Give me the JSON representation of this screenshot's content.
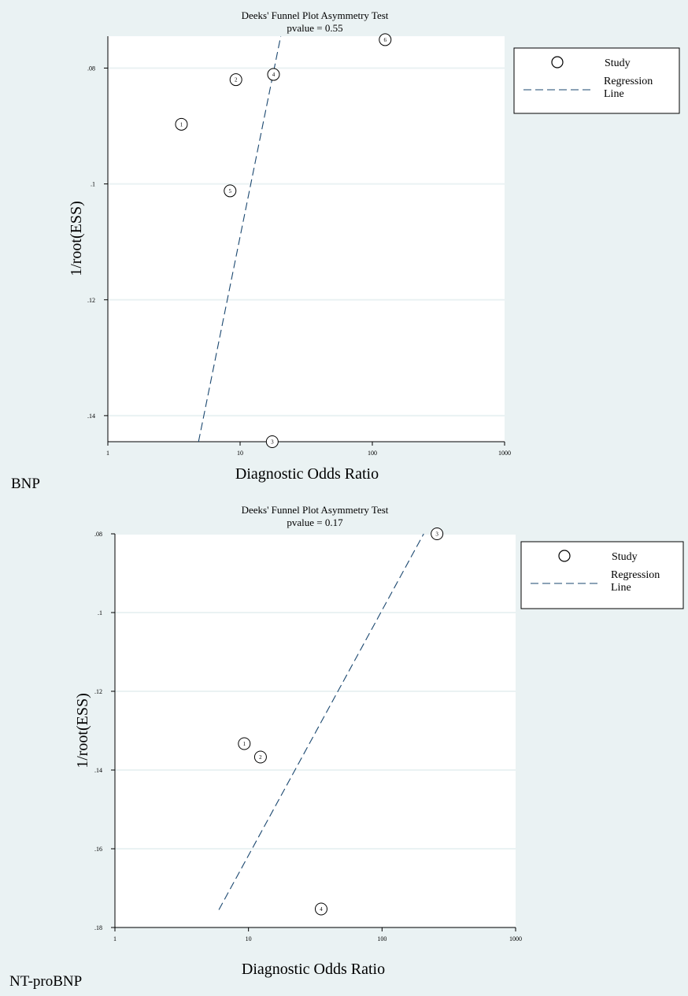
{
  "chart_data": [
    {
      "type": "scatter",
      "panel_label": "BNP",
      "title": "Deeks' Funnel Plot Asymmetry Test",
      "subtitle": "pvalue  =   0.55",
      "xlabel": "Diagnostic Odds Ratio",
      "ylabel": "1/root(ESS)",
      "x_scale": "log",
      "xlim": [
        1,
        1000
      ],
      "x_ticks": [
        "1",
        "10",
        "100",
        "1000"
      ],
      "ylim": [
        0.0745,
        0.1445
      ],
      "y_reversed": true,
      "y_ticks": [
        0.08,
        0.1,
        0.12,
        0.14
      ],
      "y_tick_labels": [
        ".08",
        ".1",
        ".12",
        ".14"
      ],
      "grid": true,
      "legend": {
        "position": "right",
        "entries": [
          "Study",
          "Regression Line"
        ]
      },
      "series": [
        {
          "name": "Study",
          "points": [
            {
              "label": "1",
              "x": 3.6,
              "y": 0.0897
            },
            {
              "label": "2",
              "x": 9.3,
              "y": 0.082
            },
            {
              "label": "3",
              "x": 17.5,
              "y": 0.1445
            },
            {
              "label": "4",
              "x": 17.9,
              "y": 0.0811
            },
            {
              "label": "5",
              "x": 8.4,
              "y": 0.1012
            },
            {
              "label": "6",
              "x": 125,
              "y": 0.0751
            }
          ]
        },
        {
          "name": "Regression Line",
          "line": [
            {
              "x": 4.85,
              "y": 0.1445
            },
            {
              "x": 20.3,
              "y": 0.0745
            }
          ]
        }
      ]
    },
    {
      "type": "scatter",
      "panel_label": "NT-proBNP",
      "title": "Deeks' Funnel Plot Asymmetry Test",
      "subtitle": "pvalue  =   0.17",
      "xlabel": "Diagnostic Odds Ratio",
      "ylabel": "1/root(ESS)",
      "x_scale": "log",
      "xlim": [
        1,
        1000
      ],
      "x_ticks": [
        "1",
        "10",
        "100",
        "1000"
      ],
      "ylim": [
        0.08,
        0.18
      ],
      "y_reversed": true,
      "y_ticks": [
        0.08,
        0.1,
        0.12,
        0.14,
        0.16,
        0.18
      ],
      "y_tick_labels": [
        ".08",
        ".1",
        ".12",
        ".14",
        ".16",
        ".18"
      ],
      "grid": true,
      "legend": {
        "position": "right",
        "entries": [
          "Study",
          "Regression Line"
        ]
      },
      "series": [
        {
          "name": "Study",
          "points": [
            {
              "label": "1",
              "x": 9.3,
              "y": 0.1333
            },
            {
              "label": "2",
              "x": 12.3,
              "y": 0.1367
            },
            {
              "label": "3",
              "x": 258,
              "y": 0.08
            },
            {
              "label": "4",
              "x": 35,
              "y": 0.1753
            }
          ]
        },
        {
          "name": "Regression Line",
          "line": [
            {
              "x": 6.0,
              "y": 0.1755
            },
            {
              "x": 205,
              "y": 0.08
            }
          ]
        }
      ]
    }
  ],
  "colors": {
    "panel_bg": "#eaf2f3",
    "plot_bg": "#ffffff",
    "regression": "#1a476f"
  }
}
